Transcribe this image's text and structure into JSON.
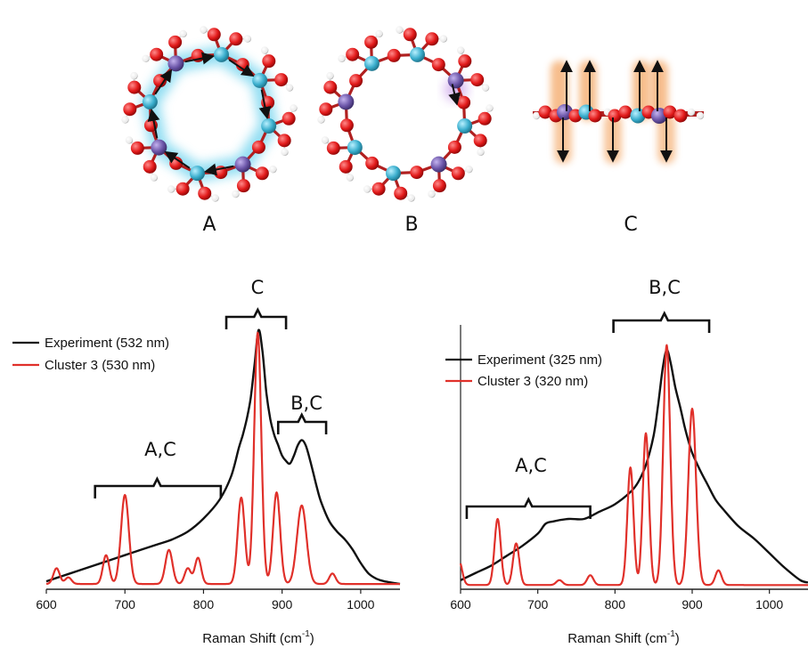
{
  "panels": {
    "a": "A",
    "b": "B",
    "c": "C"
  },
  "colors": {
    "experiment": "#111111",
    "cluster": "#e0302a",
    "oxygen": "#e21a1a",
    "silicon": "#3aaecd",
    "aluminum": "#6b55a8",
    "hydrogen": "#f4f4f4",
    "highlight_blue": "#7fd8f0",
    "highlight_orange": "#f4a868"
  },
  "chart_data": [
    {
      "type": "line",
      "xlabel": "Raman Shift (cm",
      "xlabel_sup": "-1",
      "xlabel_close": ")",
      "xlim": [
        600,
        1050
      ],
      "xticks": [
        "600",
        "700",
        "800",
        "900",
        "1000"
      ],
      "xtick_values": [
        600,
        700,
        800,
        900,
        1000
      ],
      "legend_position": "top-left",
      "series": [
        {
          "name": "Experiment (532 nm)",
          "kind": "smooth",
          "x": [
            600,
            620,
            640,
            660,
            680,
            700,
            720,
            740,
            760,
            780,
            800,
            820,
            835,
            845,
            850,
            855,
            860,
            865,
            870,
            875,
            880,
            885,
            890,
            895,
            900,
            905,
            910,
            915,
            920,
            925,
            930,
            935,
            940,
            945,
            950,
            960,
            970,
            980,
            990,
            1000,
            1010,
            1020,
            1030,
            1050
          ],
          "y": [
            0.02,
            0.04,
            0.06,
            0.08,
            0.1,
            0.12,
            0.14,
            0.16,
            0.18,
            0.21,
            0.26,
            0.33,
            0.42,
            0.53,
            0.58,
            0.64,
            0.72,
            0.85,
            0.98,
            0.9,
            0.74,
            0.64,
            0.58,
            0.54,
            0.5,
            0.48,
            0.47,
            0.5,
            0.54,
            0.56,
            0.54,
            0.49,
            0.43,
            0.37,
            0.32,
            0.25,
            0.21,
            0.18,
            0.14,
            0.09,
            0.05,
            0.03,
            0.02,
            0.01
          ]
        },
        {
          "name": "Cluster 3 (530 nm)",
          "kind": "peaks",
          "baseline": 0.01,
          "peaks": [
            {
              "x": 613,
              "h": 0.06,
              "w": 4
            },
            {
              "x": 628,
              "h": 0.025,
              "w": 4
            },
            {
              "x": 676,
              "h": 0.11,
              "w": 4
            },
            {
              "x": 700,
              "h": 0.34,
              "w": 5
            },
            {
              "x": 756,
              "h": 0.13,
              "w": 4.5
            },
            {
              "x": 780,
              "h": 0.06,
              "w": 4
            },
            {
              "x": 793,
              "h": 0.1,
              "w": 4
            },
            {
              "x": 848,
              "h": 0.33,
              "w": 4.5
            },
            {
              "x": 869,
              "h": 0.96,
              "w": 4.5
            },
            {
              "x": 893,
              "h": 0.35,
              "w": 4.5
            },
            {
              "x": 925,
              "h": 0.3,
              "w": 6
            },
            {
              "x": 964,
              "h": 0.04,
              "w": 4
            }
          ]
        }
      ]
    },
    {
      "type": "line",
      "xlabel": "Raman Shift (cm",
      "xlabel_sup": "-1",
      "xlabel_close": ")",
      "xlim": [
        600,
        1050
      ],
      "xticks": [
        "600",
        "700",
        "800",
        "900",
        "1000"
      ],
      "xtick_values": [
        600,
        700,
        800,
        900,
        1000
      ],
      "legend_position": "top-left",
      "series": [
        {
          "name": "Experiment (325 nm)",
          "kind": "smooth",
          "x": [
            600,
            620,
            640,
            660,
            680,
            700,
            710,
            720,
            740,
            760,
            780,
            800,
            820,
            830,
            840,
            850,
            856,
            862,
            867,
            872,
            878,
            885,
            890,
            895,
            900,
            910,
            920,
            930,
            940,
            960,
            980,
            1000,
            1020,
            1040,
            1050
          ],
          "y": [
            0.03,
            0.06,
            0.09,
            0.13,
            0.17,
            0.22,
            0.26,
            0.27,
            0.28,
            0.28,
            0.31,
            0.34,
            0.39,
            0.43,
            0.5,
            0.62,
            0.75,
            0.9,
            0.97,
            0.92,
            0.82,
            0.73,
            0.66,
            0.6,
            0.55,
            0.48,
            0.42,
            0.36,
            0.32,
            0.25,
            0.2,
            0.14,
            0.08,
            0.03,
            0.02
          ]
        },
        {
          "name": "Cluster 3 (320 nm)",
          "kind": "peaks",
          "baseline": 0.01,
          "peaks": [
            {
              "x": 598,
              "h": 0.1,
              "w": 4
            },
            {
              "x": 648,
              "h": 0.27,
              "w": 4
            },
            {
              "x": 672,
              "h": 0.17,
              "w": 4
            },
            {
              "x": 728,
              "h": 0.02,
              "w": 4
            },
            {
              "x": 768,
              "h": 0.04,
              "w": 4
            },
            {
              "x": 820,
              "h": 0.48,
              "w": 4
            },
            {
              "x": 840,
              "h": 0.62,
              "w": 4
            },
            {
              "x": 867,
              "h": 0.98,
              "w": 4.5
            },
            {
              "x": 900,
              "h": 0.72,
              "w": 5
            },
            {
              "x": 934,
              "h": 0.06,
              "w": 4
            }
          ]
        }
      ]
    }
  ],
  "annotations": {
    "left_c": "C",
    "left_bc": "B,C",
    "left_ac": "A,C",
    "right_bc": "B,C",
    "right_ac": "A,C"
  }
}
